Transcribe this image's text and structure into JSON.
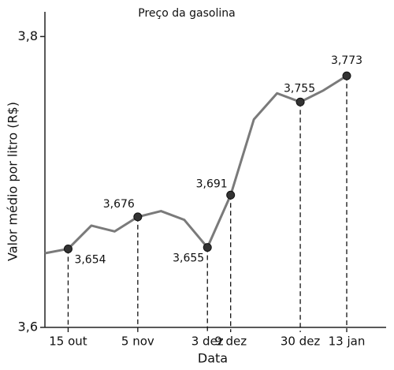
{
  "chart_data": {
    "type": "line",
    "title": "Preço da gasolina",
    "x_label": "Data",
    "y_label": "Valor médio por litro (R$)",
    "categories": [
      null,
      "15 out",
      null,
      null,
      "5 nov",
      null,
      null,
      "3 dez",
      "9 dez",
      null,
      null,
      "30 dez",
      null,
      "13 jan"
    ],
    "series": [
      {
        "name": null,
        "color": "#7a7a7a",
        "values": [
          3.651,
          3.654,
          3.67,
          3.666,
          3.676,
          3.68,
          3.674,
          3.655,
          3.691,
          3.743,
          3.761,
          3.755,
          3.763,
          3.773
        ],
        "value_labels": [
          null,
          "3,654",
          null,
          null,
          "3,676",
          null,
          null,
          "3,655",
          "3,691",
          null,
          null,
          "3,755",
          null,
          "3,773"
        ]
      }
    ],
    "ylim": [
      3.6,
      3.817
    ],
    "yticks": [
      {
        "value": 3.6,
        "label": "3,6"
      },
      {
        "value": 3.8,
        "label": "3,8"
      }
    ],
    "grid": false
  }
}
